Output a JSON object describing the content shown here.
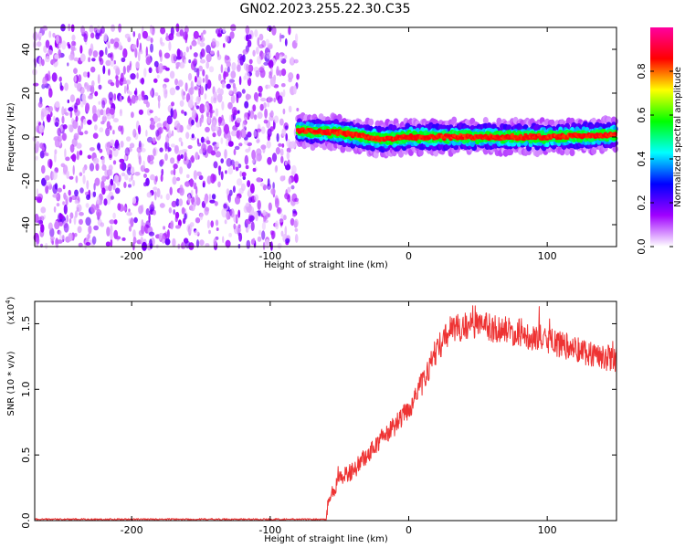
{
  "title": "GN02.2023.255.22.30.C35",
  "chart_data": [
    {
      "type": "heatmap",
      "xlabel": "Height of straight line (km)",
      "ylabel": "Frequency (Hz)",
      "xlim": [
        -270,
        150
      ],
      "ylim": [
        -50,
        50
      ],
      "xticks": [
        -200,
        -100,
        0,
        100
      ],
      "yticks": [
        -40,
        -20,
        0,
        20,
        40
      ],
      "colorbar": {
        "label": "Normalized spectral amplitude",
        "range": [
          0,
          1
        ],
        "ticks": [
          "0.0",
          "0.2",
          "0.4",
          "0.6",
          "0.8"
        ],
        "ticks_values": [
          0,
          0.2,
          0.4,
          0.6,
          0.8
        ],
        "colors": [
          "#ffffff",
          "#a000ff",
          "#0000ff",
          "#00ffff",
          "#00ff00",
          "#ffff00",
          "#ff0000",
          "#ff00a0"
        ]
      },
      "features": [
        {
          "x_range": [
            -270,
            -80
          ],
          "freq_range": [
            -50,
            50
          ],
          "amplitude": "low (0.1-0.4)"
        },
        {
          "x_range": [
            -80,
            150
          ],
          "freq_center": [
            [
              -80,
              3
            ],
            [
              -50,
              2
            ],
            [
              -20,
              -1
            ],
            [
              0,
              0
            ],
            [
              50,
              0
            ],
            [
              100,
              0
            ],
            [
              150,
              1
            ]
          ],
          "amplitude": "high (0.8-1.0)"
        }
      ]
    },
    {
      "type": "line",
      "xlabel": "Height of straight line (km)",
      "ylabel": "SNR (10 * v/v)",
      "yunit": "(x10^4)",
      "yunit_base": "(x10",
      "yunit_exp": "4",
      "yunit_close": ")",
      "xlim": [
        -270,
        150
      ],
      "ylim": [
        0,
        1.67
      ],
      "xticks": [
        -200,
        -100,
        0,
        100
      ],
      "yticks": [
        "0.0",
        "0.5",
        "1.0",
        "1.5"
      ],
      "ytick_values": [
        0,
        0.5,
        1.0,
        1.5
      ],
      "color": "#ee3333",
      "series": [
        {
          "x": [
            -270,
            -200,
            -100,
            -60,
            -58,
            -50,
            -40,
            -30,
            -20,
            -10,
            0,
            10,
            20,
            30,
            40,
            50,
            60,
            70,
            80,
            90,
            100,
            110,
            120,
            130,
            140,
            150
          ],
          "values": [
            0.01,
            0.01,
            0.01,
            0.01,
            0.15,
            0.32,
            0.38,
            0.5,
            0.62,
            0.72,
            0.85,
            1.05,
            1.3,
            1.45,
            1.48,
            1.49,
            1.47,
            1.45,
            1.43,
            1.4,
            1.37,
            1.34,
            1.31,
            1.28,
            1.25,
            1.22
          ]
        }
      ]
    }
  ]
}
